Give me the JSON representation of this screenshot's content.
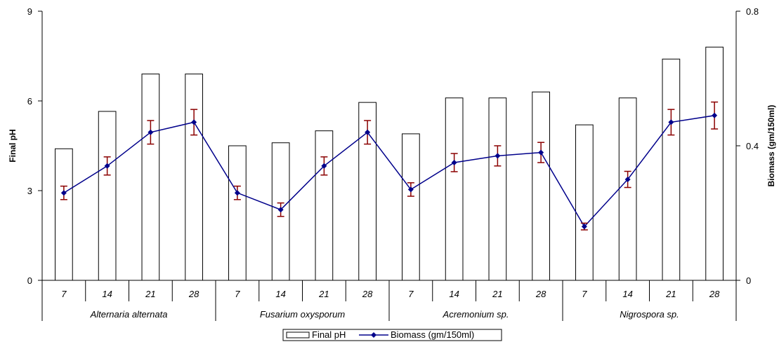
{
  "chart_data": {
    "type": "bar",
    "ylabel": "Final pH",
    "y2label": "Biomass (gm/150ml)",
    "ylim": [
      0,
      9
    ],
    "y2lim": [
      0,
      0.8
    ],
    "yticks": [
      "0",
      "3",
      "6",
      "9"
    ],
    "y2ticks": [
      "0",
      "0.4",
      "0.8"
    ],
    "groups": [
      "Alternaria alternata",
      "Fusarium oxysporum",
      "Acremonium sp.",
      "Nigrospora sp."
    ],
    "categories": [
      "7",
      "14",
      "21",
      "28",
      "7",
      "14",
      "21",
      "28",
      "7",
      "14",
      "21",
      "28",
      "7",
      "14",
      "21",
      "28"
    ],
    "series": [
      {
        "name": "Final pH",
        "type": "bar",
        "axis": "left",
        "color": "#ffffff",
        "values": [
          4.4,
          5.65,
          6.9,
          6.9,
          4.5,
          4.6,
          5.0,
          5.95,
          4.9,
          6.1,
          6.1,
          6.3,
          5.2,
          6.1,
          7.4,
          7.8
        ]
      },
      {
        "name": "Biomass (gm/150ml)",
        "type": "line",
        "axis": "right",
        "color": "#00008b",
        "values": [
          0.26,
          0.34,
          0.44,
          0.47,
          0.26,
          0.21,
          0.34,
          0.44,
          0.27,
          0.35,
          0.37,
          0.38,
          0.16,
          0.3,
          0.47,
          0.49
        ],
        "error": [
          0.02,
          0.027,
          0.035,
          0.038,
          0.02,
          0.02,
          0.027,
          0.035,
          0.02,
          0.027,
          0.03,
          0.03,
          0.01,
          0.024,
          0.038,
          0.04
        ],
        "error_color": "#8b0000"
      }
    ],
    "legend": "bottom-center",
    "grid": false
  }
}
